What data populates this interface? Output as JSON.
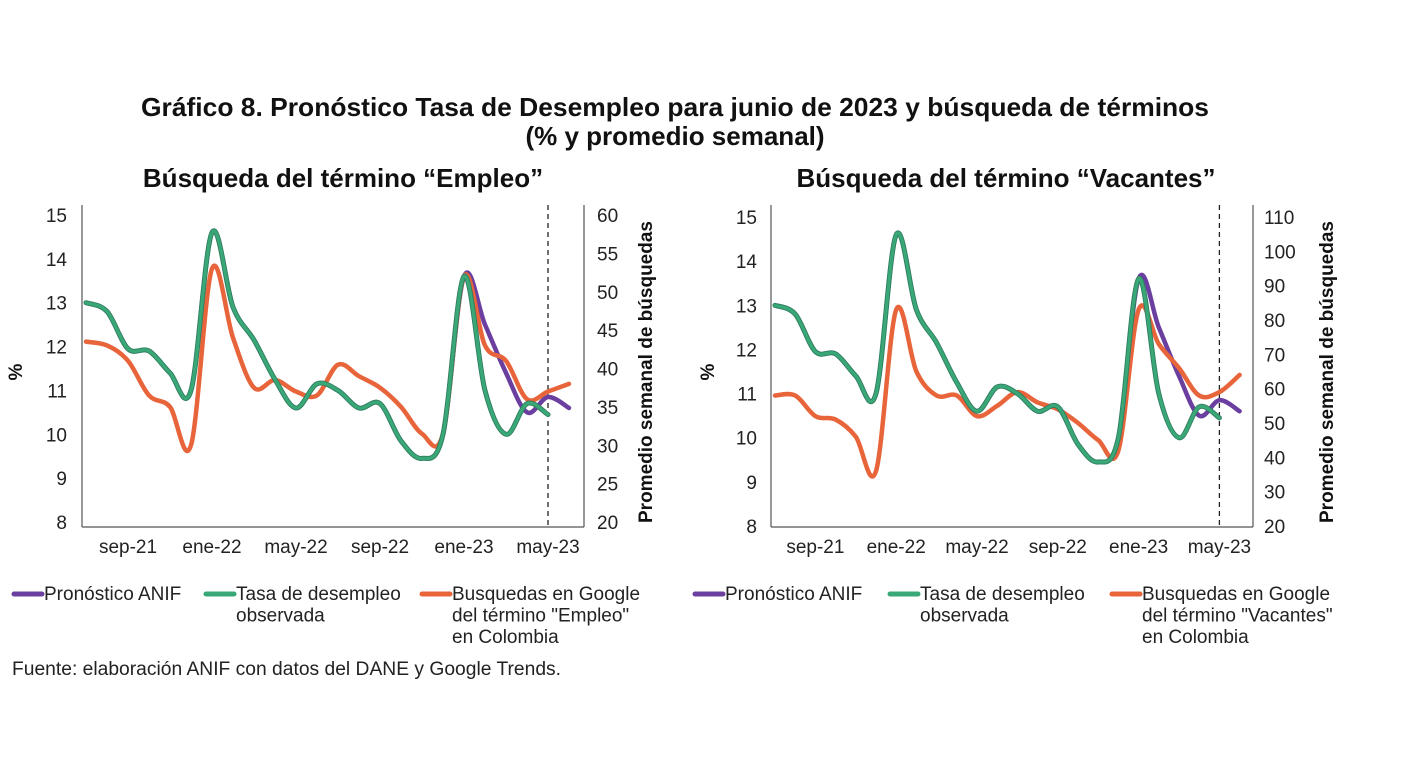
{
  "title": {
    "line1": "Gráfico 8. Pronóstico Tasa de Desempleo para junio de 2023 y búsqueda de términos",
    "line2": "(% y promedio semanal)"
  },
  "source": "Fuente: elaboración ANIF con datos del DANE y Google Trends.",
  "colors": {
    "forecast": "#6b3fa0",
    "observed": "#3aa876",
    "observed_dark": "#2f7d62",
    "google": "#e8643a"
  },
  "chart_data": [
    {
      "type": "line",
      "title": "Búsqueda del término “Empleo”",
      "ylabel": "%",
      "y2label": "Promedio semanal de búsquedas",
      "ylim": [
        8,
        15
      ],
      "y2lim": [
        20,
        60
      ],
      "yticks": [
        "8",
        "9",
        "10",
        "11",
        "12",
        "13",
        "14",
        "15"
      ],
      "y2ticks": [
        "20",
        "25",
        "30",
        "35",
        "40",
        "45",
        "50",
        "55",
        "60"
      ],
      "xtick_labels": [
        "sep-21",
        "ene-22",
        "may-22",
        "sep-22",
        "ene-23",
        "may-23"
      ],
      "x": [
        "jul-21",
        "ago-21",
        "sep-21",
        "oct-21",
        "nov-21",
        "dic-21",
        "ene-22",
        "feb-22",
        "mar-22",
        "abr-22",
        "may-22",
        "jun-22",
        "jul-22",
        "ago-22",
        "sep-22",
        "oct-22",
        "nov-22",
        "dic-22",
        "ene-23",
        "feb-23",
        "mar-23",
        "abr-23",
        "may-23",
        "jun-23"
      ],
      "forecast_marker": "may-23",
      "grid": false,
      "legend_position": "bottom",
      "series": [
        {
          "name": "Pronóstico ANIF",
          "axis": "left",
          "color": "#6b3fa0",
          "values": [
            13.0,
            12.8,
            11.95,
            11.9,
            11.4,
            11.0,
            14.6,
            12.9,
            12.15,
            11.25,
            10.6,
            11.15,
            11.0,
            10.6,
            10.7,
            9.85,
            9.45,
            10.0,
            13.6,
            12.5,
            11.4,
            10.5,
            10.85,
            10.6
          ]
        },
        {
          "name": "Tasa de desempleo observada",
          "axis": "left",
          "color": "#3aa876",
          "values": [
            13.0,
            12.8,
            11.95,
            11.9,
            11.4,
            11.0,
            14.6,
            12.9,
            12.15,
            11.25,
            10.6,
            11.15,
            11.0,
            10.6,
            10.7,
            9.85,
            9.45,
            10.0,
            13.6,
            11.0,
            10.0,
            10.7,
            10.45,
            null
          ]
        },
        {
          "name": "Busquedas en Google del término \"Empleo\" en Colombia",
          "axis": "right",
          "color": "#e8643a",
          "values": [
            43.5,
            43,
            41,
            36.5,
            35,
            30,
            53,
            44,
            37.5,
            38.5,
            37,
            36.5,
            40.5,
            39,
            37.5,
            35,
            31.5,
            31.5,
            52,
            43,
            41,
            36,
            37,
            38
          ]
        }
      ],
      "legend": [
        "Pronóstico ANIF",
        "Tasa de desempleo\nobservada",
        "Busquedas en Google\ndel término \"Empleo\"\nen Colombia"
      ]
    },
    {
      "type": "line",
      "title": "Búsqueda del término “Vacantes”",
      "ylabel": "%",
      "y2label": "Promedio semanal de búsquedas",
      "ylim": [
        8,
        15
      ],
      "y2lim": [
        20,
        110
      ],
      "yticks": [
        "8",
        "9",
        "10",
        "11",
        "12",
        "13",
        "14",
        "15"
      ],
      "y2ticks": [
        "20",
        "30",
        "40",
        "50",
        "60",
        "70",
        "80",
        "90",
        "100",
        "110"
      ],
      "xtick_labels": [
        "sep-21",
        "ene-22",
        "may-22",
        "sep-22",
        "ene-23",
        "may-23"
      ],
      "x": [
        "jul-21",
        "ago-21",
        "sep-21",
        "oct-21",
        "nov-21",
        "dic-21",
        "ene-22",
        "feb-22",
        "mar-22",
        "abr-22",
        "may-22",
        "jun-22",
        "jul-22",
        "ago-22",
        "sep-22",
        "oct-22",
        "nov-22",
        "dic-22",
        "ene-23",
        "feb-23",
        "mar-23",
        "abr-23",
        "may-23",
        "jun-23"
      ],
      "forecast_marker": "may-23",
      "grid": false,
      "legend_position": "bottom",
      "series": [
        {
          "name": "Pronóstico ANIF",
          "axis": "left",
          "color": "#6b3fa0",
          "values": [
            13.0,
            12.8,
            11.95,
            11.9,
            11.4,
            11.0,
            14.6,
            12.9,
            12.15,
            11.25,
            10.6,
            11.15,
            11.0,
            10.6,
            10.7,
            9.85,
            9.45,
            10.0,
            13.6,
            12.5,
            11.4,
            10.5,
            10.85,
            10.6
          ]
        },
        {
          "name": "Tasa de desempleo observada",
          "axis": "left",
          "color": "#3aa876",
          "values": [
            13.0,
            12.8,
            11.95,
            11.9,
            11.4,
            11.0,
            14.6,
            12.9,
            12.15,
            11.25,
            10.6,
            11.15,
            11.0,
            10.6,
            10.7,
            9.85,
            9.45,
            10.0,
            13.6,
            11.0,
            10.0,
            10.7,
            10.45,
            null
          ]
        },
        {
          "name": "Busquedas en Google del término \"Vacantes\" en Colombia",
          "axis": "right",
          "color": "#e8643a",
          "values": [
            58,
            58,
            52,
            51,
            46,
            36,
            83,
            65,
            58,
            58,
            52,
            55,
            59,
            56,
            54,
            50,
            45,
            42,
            83,
            73,
            66,
            58,
            59,
            64
          ]
        }
      ],
      "legend": [
        "Pronóstico ANIF",
        "Tasa de desempleo\nobservada",
        "Busquedas en Google\ndel término \"Vacantes\"\nen Colombia"
      ]
    }
  ]
}
